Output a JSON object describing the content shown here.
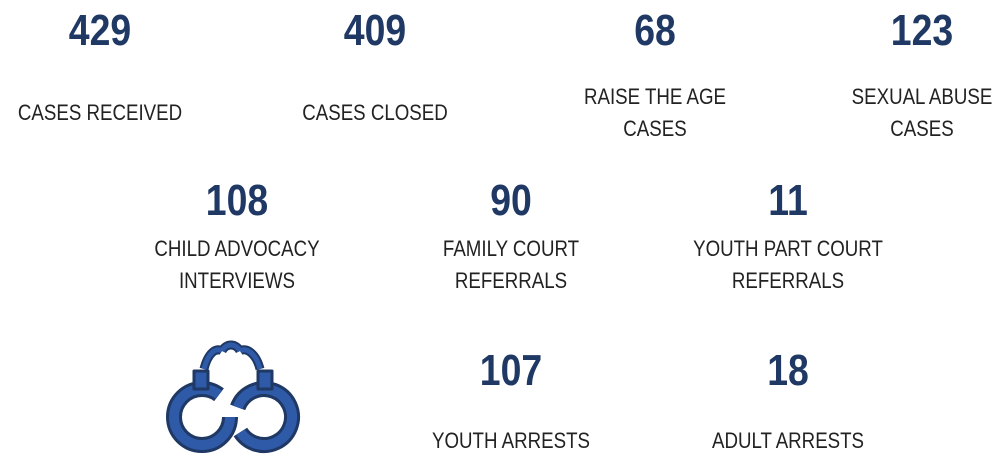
{
  "stats": [
    {
      "value": 429,
      "label": [
        "CASES RECEIVED"
      ]
    },
    {
      "value": 409,
      "label": [
        "CASES CLOSED"
      ]
    },
    {
      "value": 68,
      "label": [
        "RAISE THE AGE",
        "CASES"
      ]
    },
    {
      "value": 123,
      "label": [
        "SEXUAL ABUSE",
        "CASES"
      ]
    },
    {
      "value": 108,
      "label": [
        "CHILD ADVOCACY",
        "INTERVIEWS"
      ]
    },
    {
      "value": 90,
      "label": [
        "FAMILY COURT",
        "REFERRALS"
      ]
    },
    {
      "value": 11,
      "label": [
        "YOUTH PART COURT",
        "REFERRALS"
      ]
    },
    {
      "value": 107,
      "label": [
        "YOUTH ARRESTS"
      ]
    },
    {
      "value": 18,
      "label": [
        "ADULT ARRESTS"
      ]
    }
  ]
}
